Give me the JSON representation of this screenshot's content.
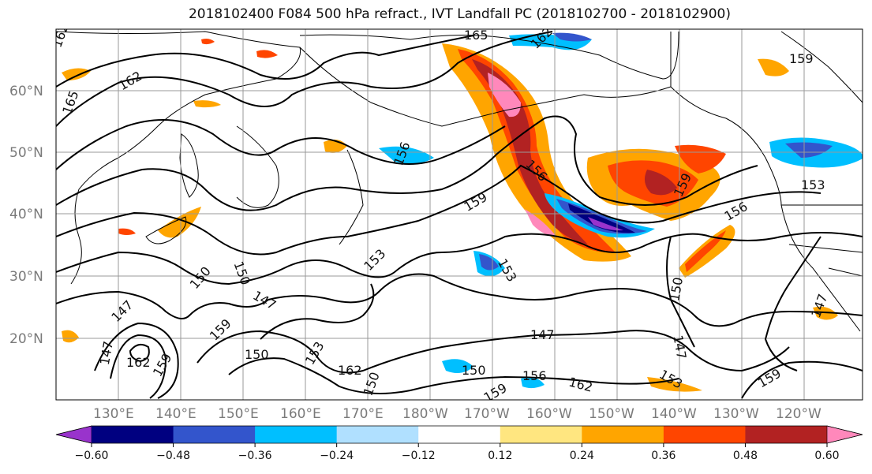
{
  "title": "2018102400 F084 500 hPa refract., IVT Landfall PC (2018102700 - 2018102900)",
  "lat_labels": [
    "60°N",
    "50°N",
    "40°N",
    "30°N",
    "20°N"
  ],
  "lon_labels": [
    "130°E",
    "140°E",
    "150°E",
    "160°E",
    "170°E",
    "180°W",
    "170°W",
    "160°W",
    "150°W",
    "140°W",
    "130°W",
    "120°W"
  ],
  "contour_labels": [
    "162",
    "165",
    "162",
    "165",
    "159",
    "162",
    "156",
    "159",
    "156",
    "159",
    "156",
    "153",
    "150",
    "150",
    "147",
    "150",
    "153",
    "147",
    "147",
    "162",
    "159",
    "150",
    "159",
    "153",
    "162",
    "147",
    "150",
    "156",
    "159",
    "162",
    "153",
    "159",
    "147",
    "147",
    "150",
    "153"
  ],
  "colorbar": {
    "ticks": [
      "−0.60",
      "−0.48",
      "−0.36",
      "−0.24",
      "−0.12",
      "0.12",
      "0.24",
      "0.36",
      "0.48",
      "0.60"
    ],
    "colors": [
      "#9933cc",
      "#000080",
      "#3355cc",
      "#00bfff",
      "#b0e0ff",
      "#ffffff",
      "#ffe680",
      "#ffa500",
      "#ff4500",
      "#b22222",
      "#ff88bb"
    ]
  },
  "colors": {
    "coast": "#000000",
    "grid": "#999999",
    "contour": "#000000"
  }
}
